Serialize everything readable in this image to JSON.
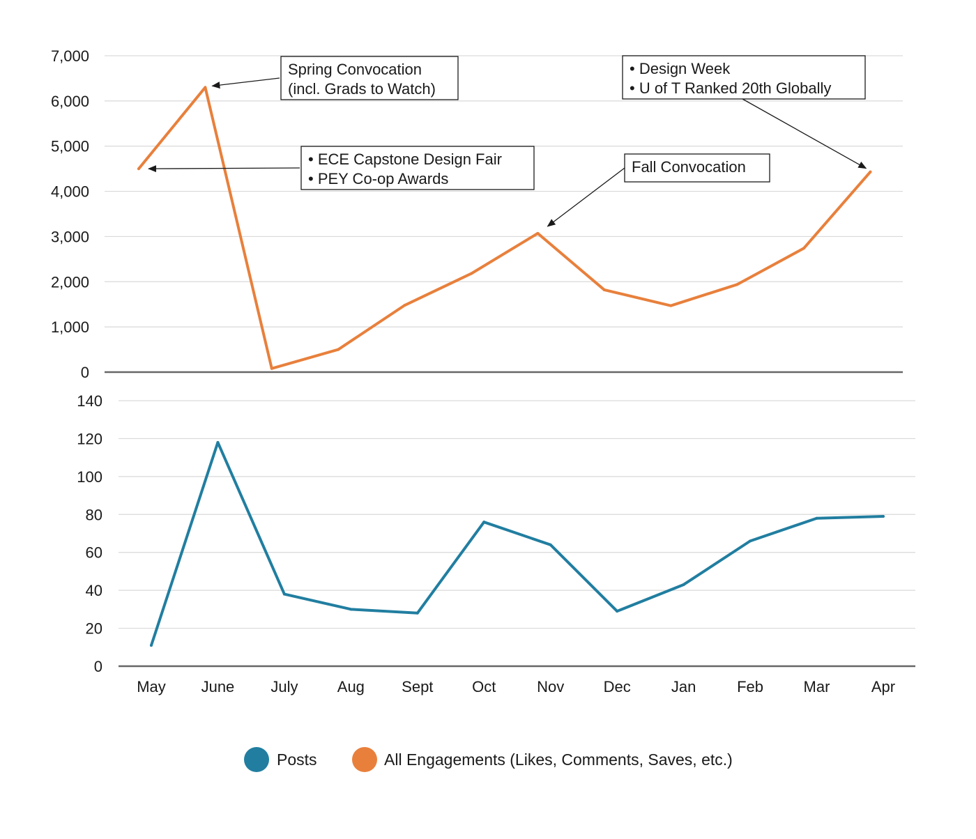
{
  "chart_data": [
    {
      "type": "line",
      "categories": [
        "May",
        "June",
        "July",
        "Aug",
        "Sept",
        "Oct",
        "Nov",
        "Dec",
        "Jan",
        "Feb",
        "Mar",
        "Apr"
      ],
      "series": [
        {
          "name": "All Engagements (Likes, Comments, Saves, etc.)",
          "color": "#E8803C",
          "values": [
            4500,
            6300,
            80,
            500,
            1480,
            2180,
            3070,
            1820,
            1470,
            1940,
            2740,
            4430
          ]
        }
      ],
      "ylim": [
        0,
        7000
      ],
      "yticks": [
        0,
        1000,
        2000,
        3000,
        4000,
        5000,
        6000,
        7000
      ],
      "ytick_labels": [
        "0",
        "1,000",
        "2,000",
        "3,000",
        "4,000",
        "5,000",
        "6,000",
        "7,000"
      ],
      "grid": true,
      "annotations": [
        {
          "lines": [
            "Spring Convocation",
            "(incl. Grads to Watch)"
          ],
          "target": "June"
        },
        {
          "lines": [
            "• ECE Capstone Design Fair",
            "• PEY Co-op Awards"
          ],
          "target": "May"
        },
        {
          "lines": [
            "Fall Convocation"
          ],
          "target": "Nov"
        },
        {
          "lines": [
            "• Design Week",
            "• U of T Ranked 20th Globally"
          ],
          "target": "Apr"
        }
      ]
    },
    {
      "type": "line",
      "categories": [
        "May",
        "June",
        "July",
        "Aug",
        "Sept",
        "Oct",
        "Nov",
        "Dec",
        "Jan",
        "Feb",
        "Mar",
        "Apr"
      ],
      "series": [
        {
          "name": "Posts",
          "color": "#217EA0",
          "values": [
            11,
            118,
            38,
            30,
            28,
            76,
            64,
            29,
            43,
            66,
            78,
            79
          ]
        }
      ],
      "ylim": [
        0,
        140
      ],
      "yticks": [
        0,
        20,
        40,
        60,
        80,
        100,
        120,
        140
      ],
      "ytick_labels": [
        "0",
        "20",
        "40",
        "60",
        "80",
        "100",
        "120",
        "140"
      ],
      "grid": true
    }
  ],
  "legend": [
    {
      "label": "Posts",
      "color": "#217EA0"
    },
    {
      "label": "All Engagements (Likes, Comments, Saves, etc.)",
      "color": "#E8803C"
    }
  ]
}
